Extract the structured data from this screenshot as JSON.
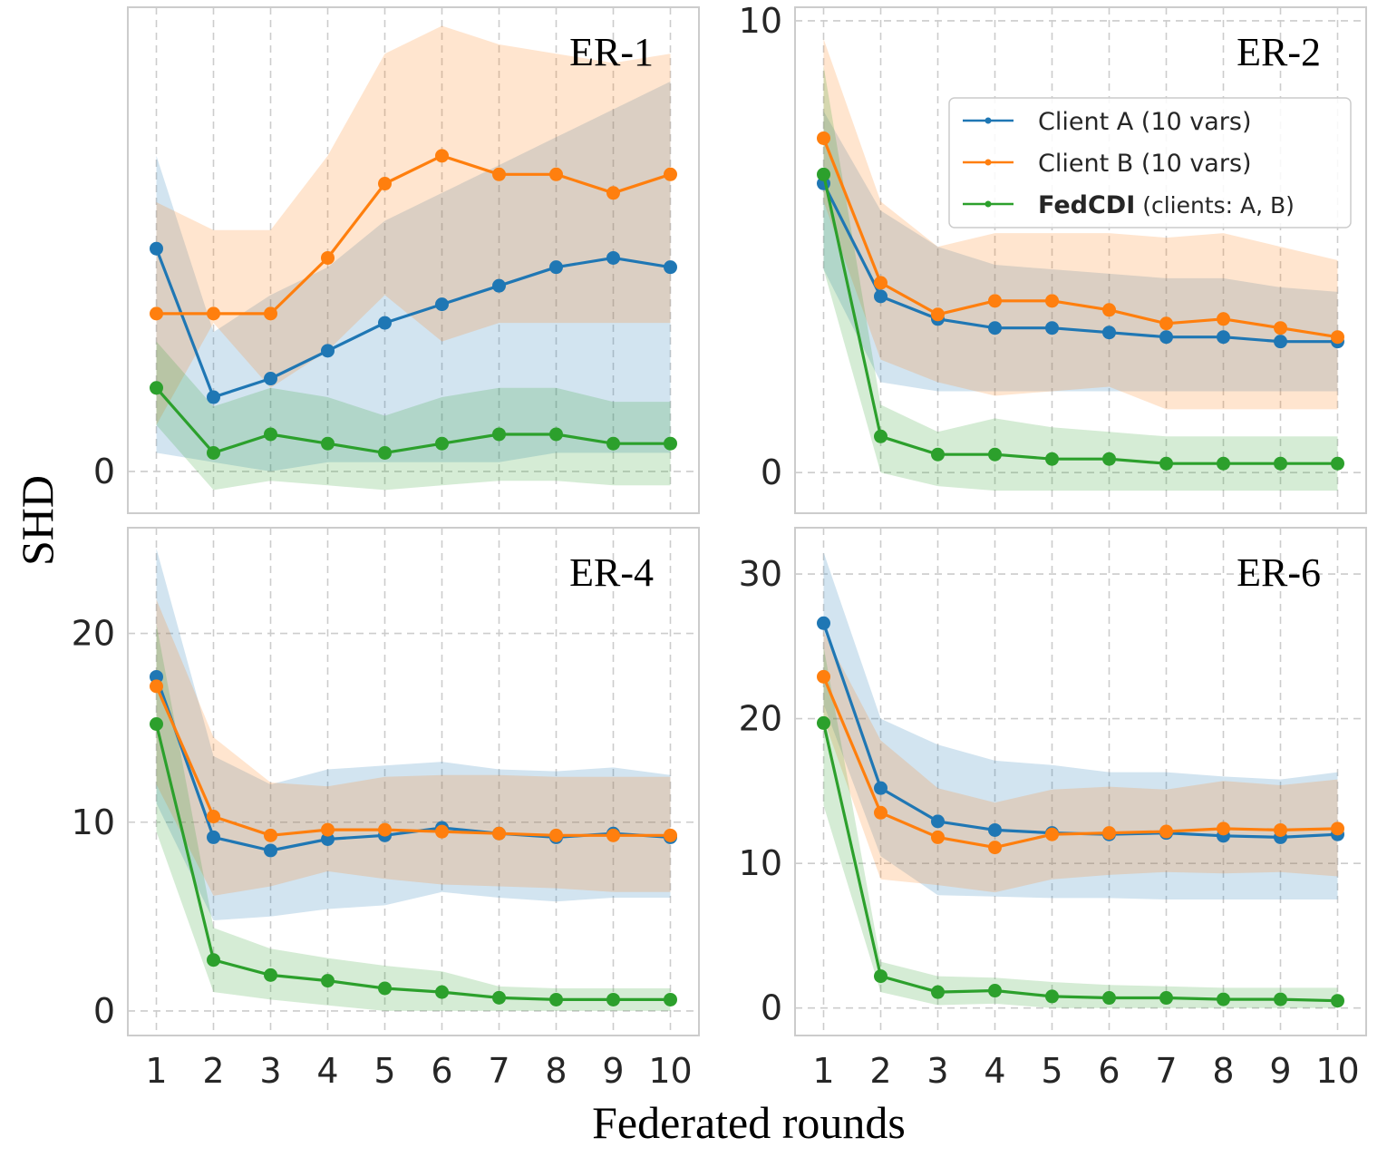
{
  "figure": {
    "ylabel": "SHD",
    "xlabel": "Federated rounds"
  },
  "legend": [
    {
      "label": "Client A (10 vars)",
      "bold": "",
      "color": "#1f77b4"
    },
    {
      "label": "Client B (10 vars)",
      "bold": "",
      "color": "#ff7f0e"
    },
    {
      "label": " (clients: A, B)",
      "bold": "FedCDI",
      "color": "#2ca02c"
    }
  ],
  "chart_data": [
    {
      "type": "line",
      "title": "ER-1",
      "x": [
        1,
        2,
        3,
        4,
        5,
        6,
        7,
        8,
        9,
        10
      ],
      "xticks": [
        "1",
        "2",
        "3",
        "4",
        "5",
        "6",
        "7",
        "8",
        "9",
        "10"
      ],
      "yticks": [
        0
      ],
      "ylim": [
        -0.45,
        5.0
      ],
      "series": [
        {
          "name": "Client A (10 vars)",
          "color": "#1f77b4",
          "values": [
            2.4,
            0.8,
            1.0,
            1.3,
            1.6,
            1.8,
            2.0,
            2.2,
            2.3,
            2.2
          ],
          "lower": [
            0.2,
            0.1,
            0.0,
            0.1,
            0.1,
            0.1,
            0.1,
            0.2,
            0.2,
            0.2
          ],
          "upper": [
            3.4,
            1.5,
            1.9,
            2.2,
            2.7,
            3.0,
            3.3,
            3.6,
            3.9,
            4.2
          ]
        },
        {
          "name": "Client B (10 vars)",
          "color": "#ff7f0e",
          "values": [
            1.7,
            1.7,
            1.7,
            2.3,
            3.1,
            3.4,
            3.2,
            3.2,
            3.0,
            3.2
          ],
          "lower": [
            0.5,
            1.6,
            0.9,
            1.3,
            1.9,
            1.4,
            1.6,
            1.6,
            1.6,
            1.6
          ],
          "upper": [
            2.9,
            2.6,
            2.6,
            3.4,
            4.5,
            4.8,
            4.6,
            4.5,
            4.4,
            4.5
          ]
        },
        {
          "name": "FedCDI",
          "color": "#2ca02c",
          "values": [
            0.9,
            0.2,
            0.4,
            0.3,
            0.2,
            0.3,
            0.4,
            0.4,
            0.3,
            0.3
          ],
          "lower": [
            0.5,
            -0.2,
            -0.1,
            -0.15,
            -0.2,
            -0.15,
            -0.1,
            -0.1,
            -0.15,
            -0.15
          ],
          "upper": [
            1.4,
            0.7,
            0.9,
            0.8,
            0.6,
            0.8,
            0.9,
            0.9,
            0.75,
            0.75
          ]
        }
      ]
    },
    {
      "type": "line",
      "title": "ER-2",
      "x": [
        1,
        2,
        3,
        4,
        5,
        6,
        7,
        8,
        9,
        10
      ],
      "xticks": [
        "1",
        "2",
        "3",
        "4",
        "5",
        "6",
        "7",
        "8",
        "9",
        "10"
      ],
      "yticks": [
        0,
        10
      ],
      "ylim": [
        -0.9,
        10.3
      ],
      "series": [
        {
          "name": "Client A (10 vars)",
          "color": "#1f77b4",
          "values": [
            6.4,
            3.9,
            3.4,
            3.2,
            3.2,
            3.1,
            3.0,
            3.0,
            2.9,
            2.9
          ],
          "lower": [
            4.5,
            2.0,
            1.8,
            1.8,
            1.8,
            1.8,
            1.8,
            1.8,
            1.8,
            1.8
          ],
          "upper": [
            8.0,
            5.8,
            5.0,
            4.6,
            4.5,
            4.4,
            4.3,
            4.3,
            4.1,
            4.0
          ]
        },
        {
          "name": "Client B (10 vars)",
          "color": "#ff7f0e",
          "values": [
            7.4,
            4.2,
            3.5,
            3.8,
            3.8,
            3.6,
            3.3,
            3.4,
            3.2,
            3.0
          ],
          "lower": [
            6.0,
            2.5,
            2.0,
            1.7,
            1.8,
            1.9,
            1.4,
            1.4,
            1.4,
            1.4
          ],
          "upper": [
            9.6,
            6.0,
            5.0,
            5.3,
            5.3,
            5.3,
            5.2,
            5.3,
            5.0,
            4.7
          ]
        },
        {
          "name": "FedCDI",
          "color": "#2ca02c",
          "values": [
            6.6,
            0.8,
            0.4,
            0.4,
            0.3,
            0.3,
            0.2,
            0.2,
            0.2,
            0.2
          ],
          "lower": [
            4.5,
            0.0,
            -0.3,
            -0.4,
            -0.4,
            -0.4,
            -0.4,
            -0.4,
            -0.4,
            -0.4
          ],
          "upper": [
            9.0,
            1.5,
            0.9,
            1.2,
            1.0,
            0.9,
            0.8,
            0.8,
            0.8,
            0.8
          ]
        }
      ]
    },
    {
      "type": "line",
      "title": "ER-4",
      "x": [
        1,
        2,
        3,
        4,
        5,
        6,
        7,
        8,
        9,
        10
      ],
      "xticks": [
        "1",
        "2",
        "3",
        "4",
        "5",
        "6",
        "7",
        "8",
        "9",
        "10"
      ],
      "yticks": [
        0,
        10,
        20
      ],
      "ylim": [
        -1.3,
        25.6
      ],
      "series": [
        {
          "name": "Client A (10 vars)",
          "color": "#1f77b4",
          "values": [
            17.7,
            9.2,
            8.5,
            9.1,
            9.3,
            9.7,
            9.4,
            9.2,
            9.4,
            9.2
          ],
          "lower": [
            11.0,
            4.8,
            5.0,
            5.4,
            5.6,
            6.3,
            6.0,
            5.8,
            6.0,
            6.0
          ],
          "upper": [
            24.5,
            13.5,
            12.0,
            12.8,
            13.0,
            13.2,
            12.8,
            12.7,
            12.9,
            12.5
          ]
        },
        {
          "name": "Client B (10 vars)",
          "color": "#ff7f0e",
          "values": [
            17.2,
            10.3,
            9.3,
            9.6,
            9.6,
            9.5,
            9.4,
            9.3,
            9.3,
            9.3
          ],
          "lower": [
            12.0,
            6.1,
            6.6,
            7.4,
            7.0,
            6.7,
            6.6,
            6.5,
            6.3,
            6.3
          ],
          "upper": [
            21.8,
            14.5,
            12.1,
            11.9,
            12.4,
            12.5,
            12.5,
            12.4,
            12.4,
            12.4
          ]
        },
        {
          "name": "FedCDI",
          "color": "#2ca02c",
          "values": [
            15.2,
            2.7,
            1.9,
            1.6,
            1.2,
            1.0,
            0.7,
            0.6,
            0.6,
            0.6
          ],
          "lower": [
            9.5,
            1.0,
            0.6,
            0.3,
            0.0,
            0.0,
            0.0,
            0.0,
            0.0,
            0.0
          ],
          "upper": [
            20.5,
            4.4,
            3.3,
            2.8,
            2.4,
            2.1,
            1.3,
            1.2,
            1.2,
            1.2
          ]
        }
      ]
    },
    {
      "type": "line",
      "title": "ER-6",
      "x": [
        1,
        2,
        3,
        4,
        5,
        6,
        7,
        8,
        9,
        10
      ],
      "xticks": [
        "1",
        "2",
        "3",
        "4",
        "5",
        "6",
        "7",
        "8",
        "9",
        "10"
      ],
      "yticks": [
        0,
        10,
        20,
        30
      ],
      "ylim": [
        -1.9,
        33.2
      ],
      "series": [
        {
          "name": "Client A (10 vars)",
          "color": "#1f77b4",
          "values": [
            26.6,
            15.2,
            12.9,
            12.3,
            12.1,
            12.0,
            12.1,
            11.9,
            11.8,
            12.0
          ],
          "lower": [
            21.0,
            10.5,
            7.8,
            7.7,
            7.6,
            7.6,
            7.5,
            7.5,
            7.5,
            7.5
          ],
          "upper": [
            31.5,
            20.0,
            18.2,
            17.1,
            16.8,
            16.3,
            16.3,
            16.0,
            15.8,
            16.3
          ]
        },
        {
          "name": "Client B (10 vars)",
          "color": "#ff7f0e",
          "values": [
            22.9,
            13.5,
            11.8,
            11.1,
            12.0,
            12.1,
            12.2,
            12.4,
            12.3,
            12.4
          ],
          "lower": [
            20.0,
            8.9,
            8.5,
            8.0,
            8.9,
            9.2,
            9.4,
            9.3,
            9.4,
            9.1
          ],
          "upper": [
            26.0,
            18.5,
            15.2,
            14.2,
            15.1,
            15.3,
            15.1,
            15.7,
            15.4,
            15.8
          ]
        },
        {
          "name": "FedCDI",
          "color": "#2ca02c",
          "values": [
            19.7,
            2.2,
            1.1,
            1.2,
            0.8,
            0.7,
            0.7,
            0.6,
            0.6,
            0.5
          ],
          "lower": [
            14.0,
            1.1,
            0.2,
            0.3,
            0.0,
            0.0,
            0.0,
            0.0,
            0.0,
            0.0
          ],
          "upper": [
            25.0,
            3.2,
            2.2,
            2.1,
            1.8,
            1.6,
            1.5,
            1.4,
            1.4,
            1.4
          ]
        }
      ]
    }
  ]
}
